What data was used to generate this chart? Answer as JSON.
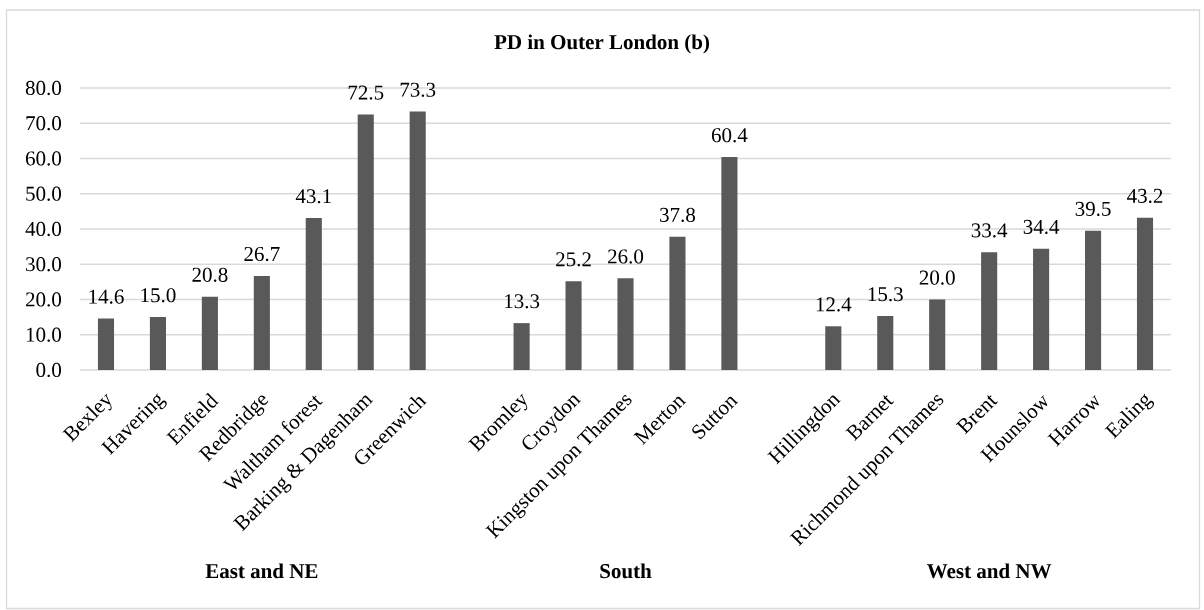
{
  "chart_data": {
    "type": "bar",
    "title": "PD in Outer London (b)",
    "categories": [
      "Bexley",
      "Havering",
      "Enfield",
      "Redbridge",
      "Waltham forest",
      "Barking & Dagenham",
      "Greenwich",
      null,
      "Bromley",
      "Croydon",
      "Kingston upon Thames",
      "Merton",
      "Sutton",
      null,
      "Hillingdon",
      "Barnet",
      "Richmond upon Thames",
      "Brent",
      "Hounslow",
      "Harrow",
      "Ealing"
    ],
    "values": [
      14.6,
      15.0,
      20.8,
      26.7,
      43.1,
      72.5,
      73.3,
      null,
      13.3,
      25.2,
      26.0,
      37.8,
      60.4,
      null,
      12.4,
      15.3,
      20.0,
      33.4,
      34.4,
      39.5,
      43.2
    ],
    "value_labels": [
      "14.6",
      "15.0",
      "20.8",
      "26.7",
      "43.1",
      "72.5",
      "73.3",
      null,
      "13.3",
      "25.2",
      "26.0",
      "37.8",
      "60.4",
      null,
      "12.4",
      "15.3",
      "20.0",
      "33.4",
      "34.4",
      "39.5",
      "43.2"
    ],
    "color": "#595959",
    "ylim": [
      0,
      80
    ],
    "yticks": [
      {
        "value": 0,
        "label": "0.0"
      },
      {
        "value": 10,
        "label": "10.0"
      },
      {
        "value": 20,
        "label": "20.0"
      },
      {
        "value": 30,
        "label": "30.0"
      },
      {
        "value": 40,
        "label": "40.0"
      },
      {
        "value": 50,
        "label": "50.0"
      },
      {
        "value": 60,
        "label": "60.0"
      },
      {
        "value": 70,
        "label": "70.0"
      },
      {
        "value": 80,
        "label": "80.0"
      }
    ],
    "grid": "y",
    "annotations": [
      "East and NE",
      "South",
      "West and NW"
    ]
  }
}
